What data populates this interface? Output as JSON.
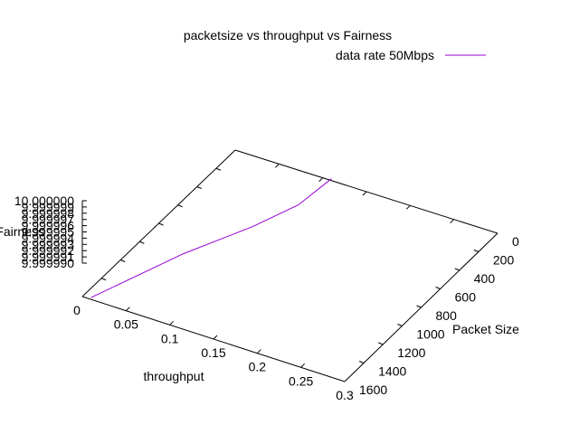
{
  "chart_data": {
    "type": "line",
    "title": "packetsize vs throughput vs Fairness",
    "xlabel": "throughput",
    "ylabel": "Packet Size",
    "zlabel": "Fairness",
    "xlim": [
      0,
      0.3
    ],
    "ylim": [
      0,
      1600
    ],
    "zlim": [
      9.99999,
      10.0
    ],
    "x_ticks": [
      "0",
      "0.05",
      "0.1",
      "0.15",
      "0.2",
      "0.25",
      "0.3"
    ],
    "y_ticks": [
      "0",
      "200",
      "400",
      "600",
      "800",
      "1000",
      "1200",
      "1400",
      "1600"
    ],
    "z_ticks": [
      "10.000000",
      "9.999999",
      "9.999998",
      "9.999997",
      "9.999996",
      "9.999995",
      "9.999994",
      "9.999993",
      "9.999992",
      "9.999991",
      "9.999990"
    ],
    "legend_position": "top-right",
    "series": [
      {
        "name": "data rate 50Mbps",
        "color": "#9400d3",
        "x": [
          0.11,
          0.105,
          0.085,
          0.05,
          0.01
        ],
        "y": [
          0,
          300,
          600,
          1000,
          1600
        ],
        "z": [
          10.0,
          10.0,
          10.0,
          10.0,
          10.0
        ]
      }
    ]
  }
}
